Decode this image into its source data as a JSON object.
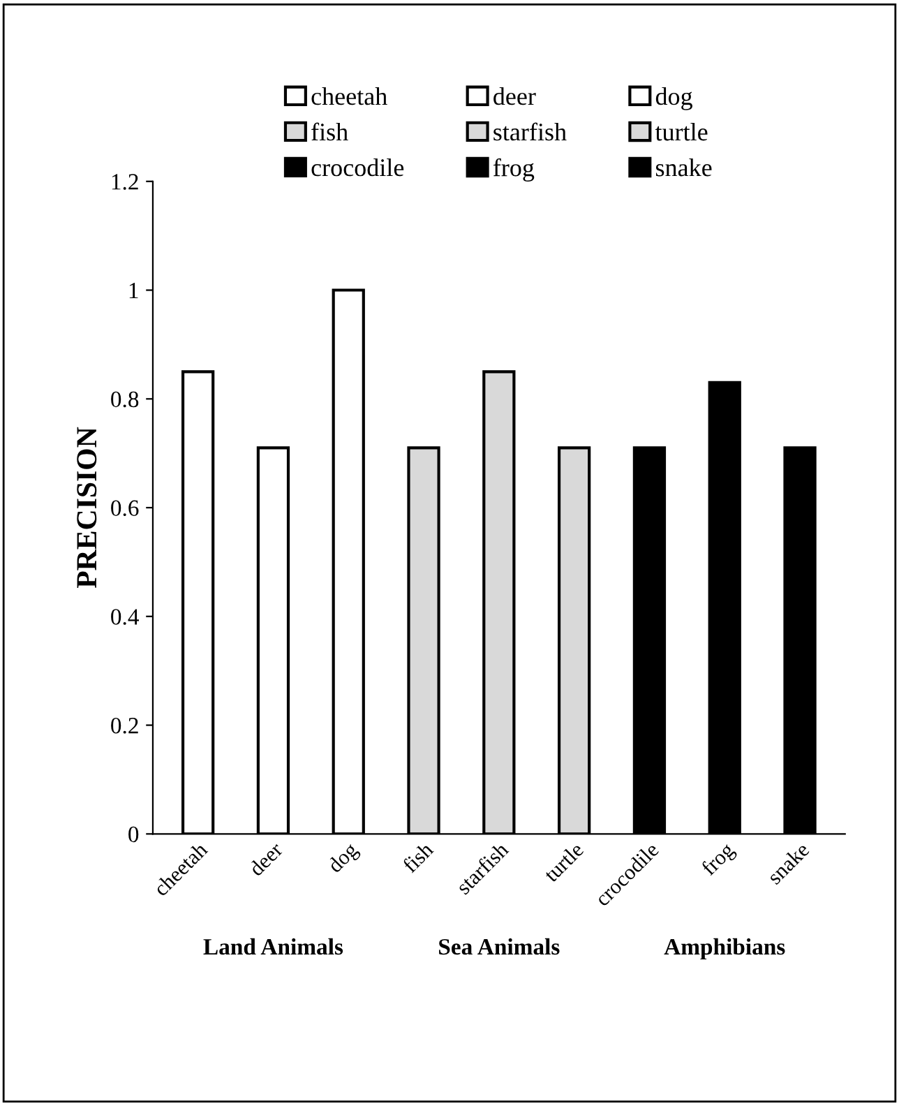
{
  "chart_data": {
    "type": "bar",
    "ylabel": "PRECISION",
    "categories": [
      "cheetah",
      "deer",
      "dog",
      "fish",
      "starfish",
      "turtle",
      "crocodile",
      "frog",
      "snake"
    ],
    "series": [
      {
        "name": "cheetah",
        "color": "#ffffff",
        "values": [
          0.85,
          null,
          null,
          null,
          null,
          null,
          null,
          null,
          null
        ]
      },
      {
        "name": "deer",
        "color": "#ffffff",
        "values": [
          null,
          0.71,
          null,
          null,
          null,
          null,
          null,
          null,
          null
        ]
      },
      {
        "name": "dog",
        "color": "#ffffff",
        "values": [
          null,
          null,
          1.0,
          null,
          null,
          null,
          null,
          null,
          null
        ]
      },
      {
        "name": "fish",
        "color": "#d9d9d9",
        "values": [
          null,
          null,
          null,
          0.71,
          null,
          null,
          null,
          null,
          null
        ]
      },
      {
        "name": "starfish",
        "color": "#d9d9d9",
        "values": [
          null,
          null,
          null,
          null,
          0.85,
          null,
          null,
          null,
          null
        ]
      },
      {
        "name": "turtle",
        "color": "#d9d9d9",
        "values": [
          null,
          null,
          null,
          null,
          null,
          0.71,
          null,
          null,
          null
        ]
      },
      {
        "name": "crocodile",
        "color": "#000000",
        "values": [
          null,
          null,
          null,
          null,
          null,
          null,
          0.71,
          null,
          null
        ]
      },
      {
        "name": "frog",
        "color": "#000000",
        "values": [
          null,
          null,
          null,
          null,
          null,
          null,
          null,
          0.83,
          null
        ]
      },
      {
        "name": "snake",
        "color": "#000000",
        "values": [
          null,
          null,
          null,
          null,
          null,
          null,
          null,
          null,
          0.71
        ]
      }
    ],
    "ylim": [
      0,
      1.2
    ],
    "yticks": [
      0,
      0.2,
      0.4,
      0.6,
      0.8,
      1,
      1.2
    ],
    "annotations": [
      "Land Animals",
      "Sea Animals",
      "Amphibians"
    ],
    "legend": "top",
    "grid": false
  }
}
